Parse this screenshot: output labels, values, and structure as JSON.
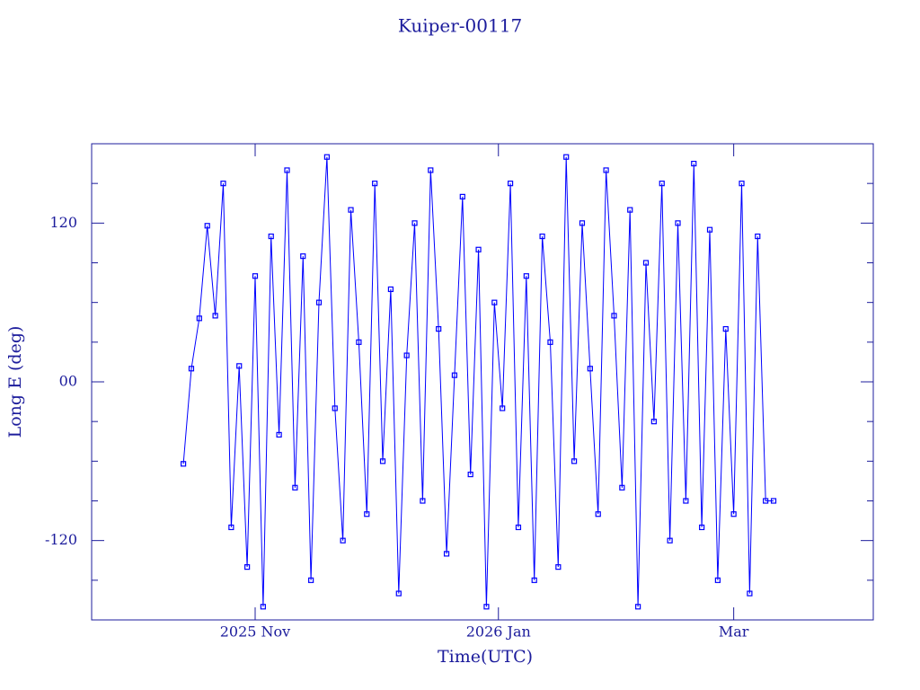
{
  "chart_data": {
    "type": "line",
    "title": "Kuiper-00117",
    "xlabel": "Time(UTC)",
    "ylabel": "Long E (deg)",
    "xlim": [
      "2025-09-21",
      "2026-04-05"
    ],
    "xticks": [
      {
        "value": "2025-11-01",
        "label": "2025 Nov"
      },
      {
        "value": "2026-01-01",
        "label": "2026 Jan"
      },
      {
        "value": "2026-03-01",
        "label": "Mar"
      }
    ],
    "ylim": [
      -180,
      180
    ],
    "yticks": [
      -120,
      {
        "value": 0,
        "label": "00"
      },
      120
    ],
    "yminorticks": [
      -150,
      -90,
      -60,
      -30,
      30,
      60,
      90,
      150
    ],
    "markers": true,
    "series": [
      {
        "name": "Kuiper-00117",
        "color": "#0000ff",
        "x": [
          "2025-10-14",
          "2025-10-16",
          "2025-10-18",
          "2025-10-20",
          "2025-10-22",
          "2025-10-24",
          "2025-10-26",
          "2025-10-28",
          "2025-10-30",
          "2025-11-01",
          "2025-11-03",
          "2025-11-05",
          "2025-11-07",
          "2025-11-09",
          "2025-11-11",
          "2025-11-13",
          "2025-11-15",
          "2025-11-17",
          "2025-11-19",
          "2025-11-21",
          "2025-11-23",
          "2025-11-25",
          "2025-11-27",
          "2025-11-29",
          "2025-12-01",
          "2025-12-03",
          "2025-12-05",
          "2025-12-07",
          "2025-12-09",
          "2025-12-11",
          "2025-12-13",
          "2025-12-15",
          "2025-12-17",
          "2025-12-19",
          "2025-12-21",
          "2025-12-23",
          "2025-12-25",
          "2025-12-27",
          "2025-12-29",
          "2025-12-31",
          "2026-01-02",
          "2026-01-04",
          "2026-01-06",
          "2026-01-08",
          "2026-01-10",
          "2026-01-12",
          "2026-01-14",
          "2026-01-16",
          "2026-01-18",
          "2026-01-20",
          "2026-01-22",
          "2026-01-24",
          "2026-01-26",
          "2026-01-28",
          "2026-01-30",
          "2026-02-01",
          "2026-02-03",
          "2026-02-05",
          "2026-02-07",
          "2026-02-09",
          "2026-02-11",
          "2026-02-13",
          "2026-02-15",
          "2026-02-17",
          "2026-02-19",
          "2026-02-21",
          "2026-02-23",
          "2026-02-25",
          "2026-02-27",
          "2026-03-01",
          "2026-03-03",
          "2026-03-05",
          "2026-03-07",
          "2026-03-09",
          "2026-03-11"
        ],
        "values": [
          -62,
          10,
          48,
          118,
          50,
          150,
          -110,
          12,
          -140,
          80,
          -170,
          110,
          -40,
          160,
          -80,
          95,
          -150,
          60,
          170,
          -20,
          -120,
          130,
          30,
          -100,
          150,
          -60,
          70,
          -160,
          20,
          120,
          -90,
          160,
          40,
          -130,
          5,
          140,
          -70,
          100,
          -170,
          60,
          -20,
          150,
          -110,
          80,
          -150,
          110,
          30,
          -140,
          170,
          -60,
          120,
          10,
          -100,
          160,
          50,
          -80,
          130,
          -170,
          90,
          -30,
          150,
          -120,
          120,
          -90,
          165,
          -110,
          115,
          -150,
          40,
          -100,
          150,
          -160,
          110,
          -90,
          -90
        ]
      }
    ]
  }
}
